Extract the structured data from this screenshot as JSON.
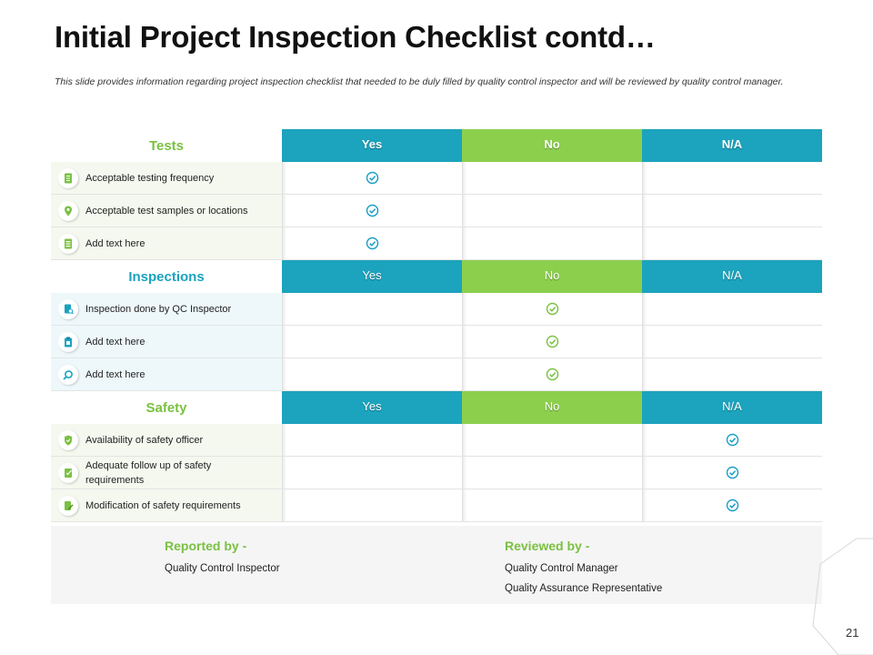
{
  "title": "Initial Project Inspection Checklist contd…",
  "subtitle": "This slide provides information regarding project inspection checklist that needed to be duly filled by quality control inspector and will be reviewed by quality control manager.",
  "colors": {
    "teal": "#1ca3bd",
    "green": "#8ccf4d",
    "green_text": "#7ac142",
    "blue_text": "#1aa3c0",
    "check_teal": "#1a9fc4",
    "check_green": "#7ac142"
  },
  "sections": [
    {
      "name": "Tests",
      "columns": [
        "Yes",
        "No",
        "N/A"
      ],
      "items": [
        {
          "label": "Acceptable testing frequency",
          "icon": "document-icon",
          "answer": "Yes"
        },
        {
          "label": "Acceptable test samples or locations",
          "icon": "location-pin-icon",
          "answer": "Yes"
        },
        {
          "label": "Add text here",
          "icon": "list-document-icon",
          "answer": "Yes"
        }
      ]
    },
    {
      "name": "Inspections",
      "columns": [
        "Yes",
        "No",
        "N/A"
      ],
      "items": [
        {
          "label": "Inspection done by QC Inspector",
          "icon": "inspection-report-icon",
          "answer": "No"
        },
        {
          "label": "Add text here",
          "icon": "clipboard-icon",
          "answer": "No"
        },
        {
          "label": "Add text here",
          "icon": "magnifier-icon",
          "answer": "No"
        }
      ]
    },
    {
      "name": "Safety",
      "columns": [
        "Yes",
        "No",
        "N/A"
      ],
      "items": [
        {
          "label": "Availability of safety officer",
          "icon": "shield-icon",
          "answer": "N/A"
        },
        {
          "label": "Adequate follow up of safety requirements",
          "icon": "checklist-icon",
          "answer": "N/A"
        },
        {
          "label": "Modification of safety requirements",
          "icon": "edit-document-icon",
          "answer": "N/A"
        }
      ]
    }
  ],
  "footer": {
    "reported_by": {
      "heading": "Reported by -",
      "lines": [
        "Quality Control Inspector"
      ]
    },
    "reviewed_by": {
      "heading": "Reviewed by -",
      "lines": [
        "Quality Control Manager",
        "Quality Assurance Representative"
      ]
    }
  },
  "page_number": "21"
}
